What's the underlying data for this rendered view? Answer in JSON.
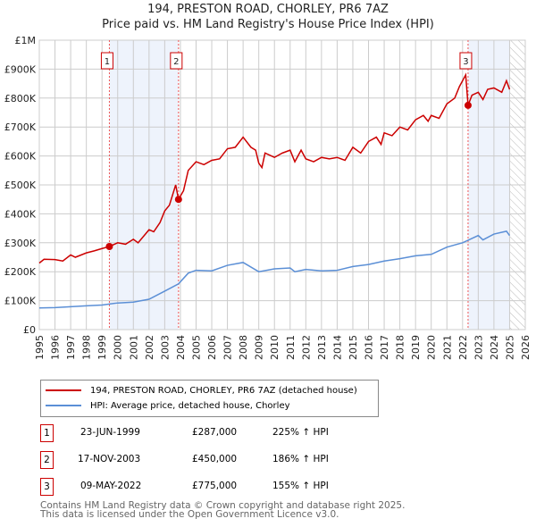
{
  "title": "194, PRESTON ROAD, CHORLEY, PR6 7AZ",
  "subtitle": "Price paid vs. HM Land Registry's House Price Index (HPI)",
  "chart_data": {
    "type": "line",
    "xlim": [
      1995,
      2026
    ],
    "ylim": [
      0,
      1000000
    ],
    "x_ticks": [
      "1995",
      "1996",
      "1997",
      "1998",
      "1999",
      "2000",
      "2001",
      "2002",
      "2003",
      "2004",
      "2005",
      "2006",
      "2007",
      "2008",
      "2009",
      "2010",
      "2011",
      "2012",
      "2013",
      "2014",
      "2015",
      "2016",
      "2017",
      "2018",
      "2019",
      "2020",
      "2021",
      "2022",
      "2023",
      "2024",
      "2025",
      "2026"
    ],
    "y_ticks": [
      {
        "v": 0,
        "l": "£0"
      },
      {
        "v": 100000,
        "l": "£100K"
      },
      {
        "v": 200000,
        "l": "£200K"
      },
      {
        "v": 300000,
        "l": "£300K"
      },
      {
        "v": 400000,
        "l": "£400K"
      },
      {
        "v": 500000,
        "l": "£500K"
      },
      {
        "v": 600000,
        "l": "£600K"
      },
      {
        "v": 700000,
        "l": "£700K"
      },
      {
        "v": 800000,
        "l": "£800K"
      },
      {
        "v": 900000,
        "l": "£900K"
      },
      {
        "v": 1000000,
        "l": "£1M"
      }
    ],
    "shaded_periods": [
      [
        1999.47,
        2003.88
      ],
      [
        2022.35,
        2025.0
      ]
    ],
    "hatched_future": [
      2025.0,
      2026
    ],
    "series": [
      {
        "name": "194, PRESTON ROAD, CHORLEY, PR6 7AZ (detached house)",
        "color": "#cc0000",
        "x": [
          1995,
          1995.3,
          1996,
          1996.5,
          1997,
          1997.3,
          1998,
          1998.5,
          1999,
          1999.47,
          2000,
          2000.5,
          2001,
          2001.3,
          2002,
          2002.3,
          2002.7,
          2003,
          2003.3,
          2003.7,
          2003.88,
          2004.2,
          2004.5,
          2005,
          2005.5,
          2006,
          2006.5,
          2007,
          2007.5,
          2008,
          2008.5,
          2008.8,
          2009,
          2009.2,
          2009.4,
          2010,
          2010.5,
          2011,
          2011.3,
          2011.7,
          2012,
          2012.5,
          2013,
          2013.5,
          2014,
          2014.5,
          2015,
          2015.5,
          2016,
          2016.5,
          2016.8,
          2017,
          2017.5,
          2018,
          2018.5,
          2019,
          2019.5,
          2019.8,
          2020,
          2020.5,
          2021,
          2021.5,
          2021.8,
          2022,
          2022.2,
          2022.35,
          2022.6,
          2023,
          2023.3,
          2023.6,
          2024,
          2024.5,
          2024.8,
          2025
        ],
        "y": [
          230,
          243,
          242,
          237,
          258,
          250,
          265,
          272,
          280,
          287,
          300,
          295,
          312,
          300,
          345,
          338,
          370,
          410,
          430,
          500,
          450,
          480,
          550,
          580,
          570,
          585,
          590,
          625,
          630,
          665,
          630,
          620,
          575,
          560,
          610,
          595,
          610,
          620,
          580,
          620,
          590,
          580,
          595,
          590,
          595,
          585,
          630,
          610,
          650,
          665,
          640,
          680,
          670,
          700,
          690,
          725,
          740,
          720,
          740,
          730,
          780,
          800,
          840,
          860,
          880,
          775,
          810,
          820,
          795,
          830,
          835,
          820,
          860,
          830
        ]
      },
      {
        "name": "HPI: Average price, detached house, Chorley",
        "color": "#5b8fd6",
        "x": [
          1995,
          1996,
          1997,
          1998,
          1999,
          2000,
          2001,
          2002,
          2003,
          2003.88,
          2004.5,
          2005,
          2006,
          2007,
          2008,
          2009,
          2010,
          2011,
          2011.3,
          2012,
          2013,
          2014,
          2015,
          2016,
          2017,
          2018,
          2019,
          2020,
          2021,
          2022,
          2023,
          2023.3,
          2024,
          2024.8,
          2025
        ],
        "y": [
          75,
          76,
          79,
          82,
          85,
          92,
          95,
          105,
          133,
          158,
          195,
          205,
          203,
          222,
          232,
          200,
          210,
          213,
          200,
          208,
          203,
          205,
          218,
          225,
          237,
          245,
          255,
          260,
          285,
          300,
          325,
          310,
          330,
          340,
          325
        ]
      }
    ],
    "y_unit_multiplier": 1000,
    "sales": [
      {
        "n": "1",
        "x": 1999.47,
        "y": 287
      },
      {
        "n": "2",
        "x": 2003.88,
        "y": 450
      },
      {
        "n": "3",
        "x": 2022.35,
        "y": 775
      }
    ]
  },
  "legend": {
    "red": "194, PRESTON ROAD, CHORLEY, PR6 7AZ (detached house)",
    "blue": "HPI: Average price, detached house, Chorley"
  },
  "transactions": [
    {
      "n": "1",
      "date": "23-JUN-1999",
      "price": "£287,000",
      "hpi": "225% ↑ HPI"
    },
    {
      "n": "2",
      "date": "17-NOV-2003",
      "price": "£450,000",
      "hpi": "186% ↑ HPI"
    },
    {
      "n": "3",
      "date": "09-MAY-2022",
      "price": "£775,000",
      "hpi": "155% ↑ HPI"
    }
  ],
  "footer": {
    "line1": "Contains HM Land Registry data © Crown copyright and database right 2025.",
    "line2": "This data is licensed under the Open Government Licence v3.0."
  }
}
